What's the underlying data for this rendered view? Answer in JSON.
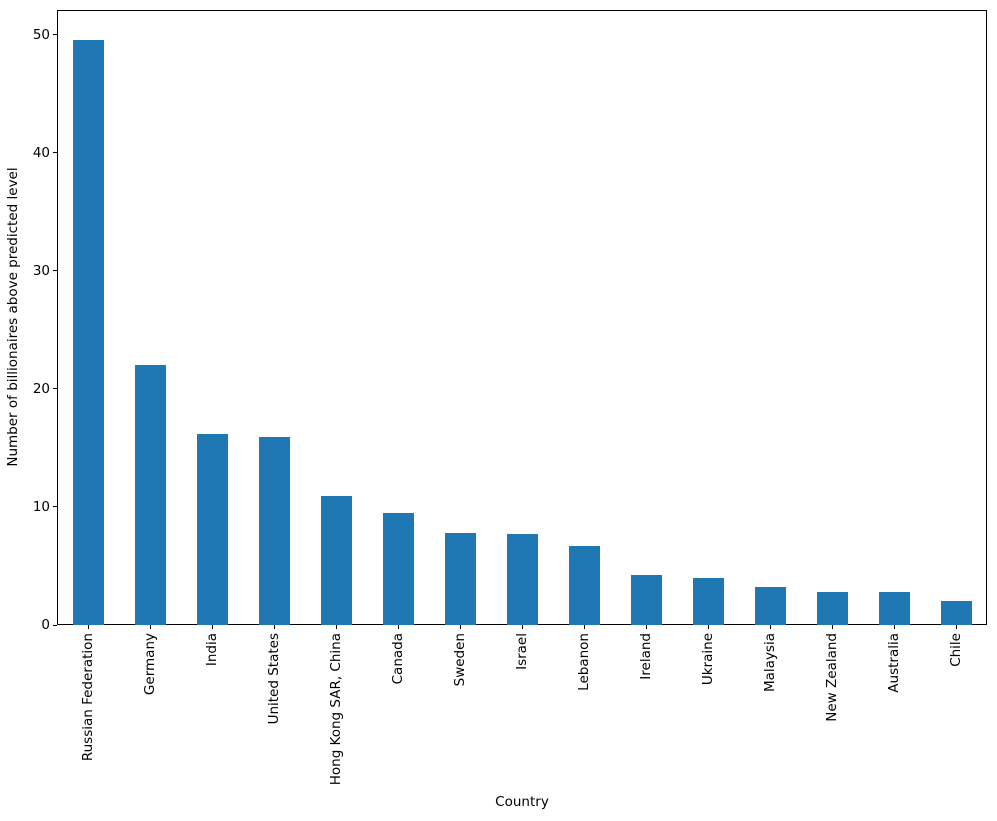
{
  "chart_data": {
    "type": "bar",
    "title": "",
    "xlabel": "Country",
    "ylabel": "Number of billionaires above predicted level",
    "categories": [
      "Russian Federation",
      "Germany",
      "India",
      "United States",
      "Hong Kong SAR, China",
      "Canada",
      "Sweden",
      "Israel",
      "Lebanon",
      "Ireland",
      "Ukraine",
      "Malaysia",
      "New Zealand",
      "Australia",
      "Chile"
    ],
    "values": [
      49.6,
      22.0,
      16.2,
      15.9,
      10.9,
      9.5,
      7.8,
      7.7,
      6.7,
      4.2,
      4.0,
      3.2,
      2.8,
      2.8,
      2.0
    ],
    "yticks": [
      0,
      10,
      20,
      30,
      40,
      50
    ],
    "ylim": [
      0,
      52.1
    ],
    "bar_color": "#1f77b4",
    "axis_color": "#000000",
    "grid": false,
    "legend": null,
    "bar_relative_width": 0.5,
    "x_tick_rotation_deg": 90
  }
}
